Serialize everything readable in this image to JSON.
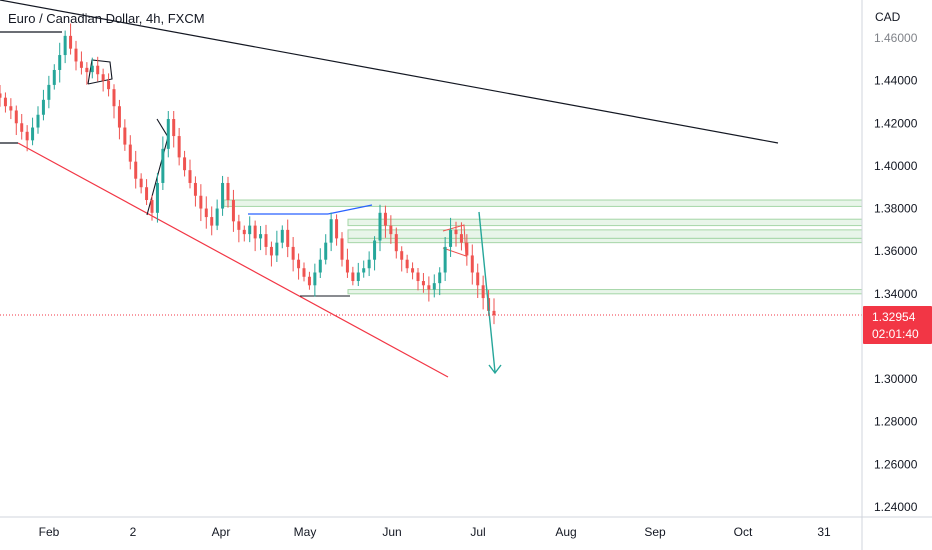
{
  "header": {
    "title": "Euro / Canadian Dollar, 4h, FXCM"
  },
  "price_scale": {
    "currency": "CAD"
  },
  "last_price": {
    "value": "1.32954",
    "countdown": "02:01:40",
    "color": "#f23645"
  },
  "colors": {
    "candle_up": "#26a69a",
    "candle_down": "#ef5350",
    "support_line": "#f23645",
    "resistance_line": "#131722",
    "zone_fill": "#e8f5e9",
    "zone_border": "#a5d6a7",
    "arrow": "#26a69a",
    "blue_line": "#2962ff"
  },
  "chart_data": {
    "type": "candlestick",
    "title": "Euro / Canadian Dollar, 4h, FXCM",
    "ylabel": "CAD",
    "ylim": [
      1.23,
      1.47
    ],
    "y_ticks": [
      "1.46000",
      "1.44000",
      "1.42000",
      "1.40000",
      "1.38000",
      "1.36000",
      "1.34000",
      "1.32000",
      "1.30000",
      "1.28000",
      "1.26000",
      "1.24000"
    ],
    "x_ticks": [
      "Feb",
      "2",
      "Apr",
      "May",
      "Jun",
      "Jul",
      "Aug",
      "Sep",
      "Oct",
      "31"
    ],
    "grid": false,
    "series": [
      {
        "values_close": [
          1.432,
          1.428,
          1.426,
          1.42,
          1.416,
          1.412,
          1.418,
          1.424,
          1.431,
          1.438,
          1.445,
          1.452,
          1.461,
          1.455,
          1.449,
          1.446,
          1.444,
          1.447,
          1.443,
          1.44,
          1.436,
          1.428,
          1.418,
          1.41,
          1.402,
          1.394,
          1.39,
          1.384,
          1.378,
          1.392,
          1.408,
          1.422,
          1.414,
          1.404,
          1.398,
          1.392,
          1.386,
          1.38,
          1.376,
          1.372,
          1.38,
          1.392,
          1.384,
          1.374,
          1.37,
          1.368,
          1.372,
          1.366,
          1.368,
          1.362,
          1.358,
          1.364,
          1.37,
          1.362,
          1.356,
          1.352,
          1.348,
          1.344,
          1.35,
          1.356,
          1.364,
          1.375,
          1.366,
          1.356,
          1.35,
          1.346,
          1.35,
          1.352,
          1.356,
          1.365,
          1.378,
          1.372,
          1.368,
          1.36,
          1.356,
          1.352,
          1.35,
          1.346,
          1.344,
          1.342,
          1.345,
          1.35,
          1.362,
          1.37,
          1.368,
          1.364,
          1.358,
          1.35,
          1.344,
          1.338,
          1.332,
          1.33
        ]
      }
    ],
    "annotations": {
      "zones": [
        [
          1.381,
          1.384
        ],
        [
          1.372,
          1.375
        ],
        [
          1.366,
          1.37
        ],
        [
          1.364,
          1.366
        ],
        [
          1.34,
          1.342
        ]
      ],
      "resistance_trendline": [
        [
          1.478,
          "Jan"
        ],
        [
          1.41,
          "Oct"
        ]
      ],
      "support_trendline": [
        [
          1.41,
          "Jan"
        ],
        [
          1.304,
          "Jul"
        ]
      ],
      "projection_arrow": [
        [
          1.378,
          "Jun"
        ],
        [
          1.304,
          "Jul"
        ]
      ]
    }
  }
}
